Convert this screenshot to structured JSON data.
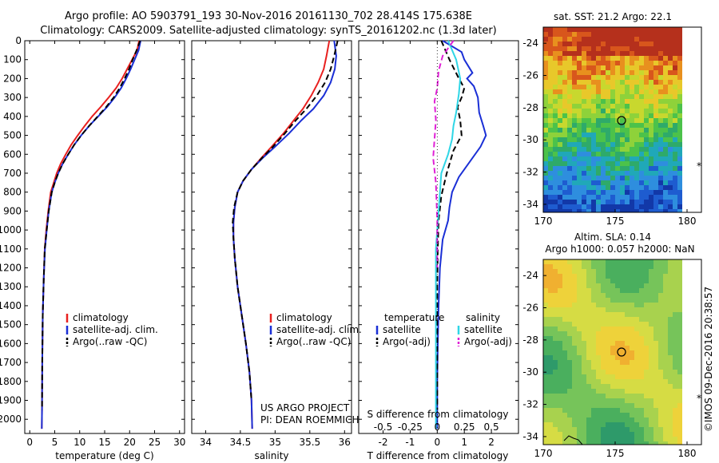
{
  "header": {
    "line1": "Argo profile: AO 5903791_193 30-Nov-2016 20161130_702 28.414S 175.638E",
    "line2": "Climatology: CARS2009. Satellite-adjusted climatology: synTS_20161202.nc (1.3d later)"
  },
  "credit": "©IMOS 09-Dec-2016 20:38:57",
  "project": {
    "line1": "US ARGO PROJECT",
    "line2": "PI: DEAN ROEMMICH"
  },
  "colors": {
    "climatology": "#e8201f",
    "satellite": "#1a2fd6",
    "argo": "#000000",
    "sat_salinity": "#2fd6e6",
    "argo_salinity": "#e020d6"
  },
  "chart_data": [
    {
      "type": "line",
      "panel": "temperature",
      "xlabel": "temperature (deg C)",
      "ylabel": "",
      "xlim": [
        -1,
        31
      ],
      "ylim": [
        2075,
        0
      ],
      "xticks": [
        "0",
        "5",
        "10",
        "15",
        "20",
        "25",
        "30"
      ],
      "yticks": [
        "0",
        "100",
        "200",
        "300",
        "400",
        "500",
        "600",
        "700",
        "800",
        "900",
        "1000",
        "1100",
        "1200",
        "1300",
        "1400",
        "1500",
        "1600",
        "1700",
        "1800",
        "1900",
        "2000"
      ],
      "y_reversed": true,
      "legend": [
        "climatology",
        "satellite-adj. clim.",
        "Argo(..raw -QC)"
      ],
      "legend_position": "lower-left",
      "series": [
        {
          "name": "climatology",
          "color": "#e8201f",
          "dash": "solid",
          "x": [
            21.9,
            21.5,
            20.5,
            19.5,
            18.5,
            17.3,
            15.8,
            14.2,
            12.5,
            11.0,
            9.6,
            8.3,
            7.2,
            6.2,
            5.4,
            4.8,
            4.2,
            3.7,
            3.3,
            3.0,
            2.8,
            2.6,
            2.5,
            2.45,
            2.4
          ],
          "y": [
            0,
            50,
            100,
            150,
            200,
            250,
            300,
            350,
            400,
            450,
            500,
            550,
            600,
            650,
            700,
            750,
            800,
            900,
            1000,
            1100,
            1250,
            1450,
            1700,
            1950,
            2050
          ]
        },
        {
          "name": "satellite-adj. clim.",
          "color": "#1a2fd6",
          "dash": "solid",
          "x": [
            22.2,
            21.8,
            21.0,
            20.2,
            19.3,
            18.3,
            17.0,
            15.5,
            13.7,
            11.9,
            10.3,
            8.9,
            7.7,
            6.6,
            5.7,
            5.0,
            4.4,
            3.8,
            3.4,
            3.05,
            2.8,
            2.6,
            2.5,
            2.45,
            2.4
          ],
          "y": [
            0,
            50,
            100,
            150,
            200,
            250,
            300,
            350,
            400,
            450,
            500,
            550,
            600,
            650,
            700,
            750,
            800,
            900,
            1000,
            1100,
            1250,
            1450,
            1700,
            1950,
            2050
          ]
        },
        {
          "name": "Argo(..raw -QC)",
          "color": "#000000",
          "dash": "dashed",
          "x": [
            22.1,
            21.4,
            20.6,
            19.9,
            19.0,
            18.0,
            16.8,
            15.3,
            13.6,
            11.9,
            10.3,
            8.9,
            7.7,
            6.6,
            5.7,
            5.0,
            4.4,
            3.8,
            3.4,
            3.0,
            2.8,
            2.6,
            2.5,
            2.45
          ],
          "y": [
            0,
            50,
            100,
            150,
            200,
            250,
            300,
            350,
            400,
            450,
            500,
            550,
            600,
            650,
            700,
            750,
            800,
            900,
            1000,
            1100,
            1250,
            1450,
            1700,
            1950
          ]
        }
      ]
    },
    {
      "type": "line",
      "panel": "salinity",
      "xlabel": "salinity",
      "ylabel": "",
      "xlim": [
        33.8,
        36.1
      ],
      "ylim": [
        2075,
        0
      ],
      "xticks": [
        "34",
        "34.5",
        "35",
        "35.5",
        "36"
      ],
      "y_reversed": true,
      "legend": [
        "climatology",
        "satellite-adj. clim.",
        "Argo(..raw -QC)"
      ],
      "legend_position": "lower-right",
      "series": [
        {
          "name": "climatology",
          "color": "#e8201f",
          "dash": "solid",
          "x": [
            35.78,
            35.74,
            35.7,
            35.62,
            35.52,
            35.4,
            35.27,
            35.12,
            34.95,
            34.8,
            34.66,
            34.54,
            34.46,
            34.42,
            34.4,
            34.4,
            34.42,
            34.46,
            34.52,
            34.58,
            34.63,
            34.66,
            34.67
          ],
          "y": [
            0,
            80,
            150,
            220,
            290,
            360,
            420,
            490,
            560,
            620,
            680,
            740,
            800,
            880,
            960,
            1040,
            1150,
            1300,
            1450,
            1600,
            1750,
            1900,
            2050
          ]
        },
        {
          "name": "satellite-adj. clim.",
          "color": "#1a2fd6",
          "dash": "solid",
          "x": [
            35.85,
            35.88,
            35.86,
            35.8,
            35.7,
            35.55,
            35.38,
            35.2,
            35.0,
            34.82,
            34.66,
            34.54,
            34.46,
            34.42,
            34.4,
            34.4,
            34.42,
            34.46,
            34.52,
            34.58,
            34.63,
            34.66,
            34.67
          ],
          "y": [
            0,
            80,
            150,
            220,
            290,
            360,
            420,
            490,
            560,
            620,
            680,
            740,
            800,
            880,
            960,
            1040,
            1150,
            1300,
            1450,
            1600,
            1750,
            1900,
            2050
          ]
        },
        {
          "name": "Argo(..raw -QC)",
          "color": "#000000",
          "dash": "dashed",
          "x": [
            35.9,
            35.85,
            35.8,
            35.72,
            35.6,
            35.45,
            35.3,
            35.14,
            34.97,
            34.81,
            34.66,
            34.54,
            34.46,
            34.41,
            34.39,
            34.4,
            34.42,
            34.46,
            34.52,
            34.58,
            34.63,
            34.66
          ],
          "y": [
            0,
            80,
            150,
            220,
            290,
            360,
            420,
            490,
            560,
            620,
            680,
            740,
            800,
            880,
            960,
            1040,
            1150,
            1300,
            1450,
            1600,
            1750,
            1900
          ]
        }
      ]
    },
    {
      "type": "line",
      "panel": "difference",
      "xlabel": "T difference from climatology",
      "xlabel_top": "S difference from climatology",
      "xlim": [
        -2.9,
        3.0
      ],
      "ylim": [
        2075,
        0
      ],
      "xticks": [
        "-2",
        "-1",
        "0",
        "1",
        "2"
      ],
      "xticks_salinity": [
        "-0.5",
        "-0.25",
        "0",
        "0.25",
        "0.5"
      ],
      "y_reversed": true,
      "legend": [
        "temperature",
        "satellite",
        "Argo(-adj)",
        "salinity",
        "satellite",
        "Argo(-adj)"
      ],
      "legend_position": "lower-center",
      "series": [
        {
          "name": "temperature satellite",
          "color": "#1a2fd6",
          "dash": "solid",
          "x": [
            0.2,
            0.9,
            1.0,
            1.3,
            1.1,
            1.35,
            1.5,
            1.55,
            1.7,
            1.8,
            1.6,
            1.2,
            0.8,
            0.55,
            0.45,
            0.4,
            0.2,
            0.1,
            0.05,
            0.02,
            0.0,
            0.0
          ],
          "y": [
            0,
            60,
            100,
            170,
            200,
            240,
            300,
            380,
            450,
            500,
            560,
            640,
            720,
            800,
            880,
            950,
            1050,
            1200,
            1400,
            1600,
            1800,
            2050
          ]
        },
        {
          "name": "temperature Argo(-adj)",
          "color": "#000000",
          "dash": "dashed",
          "x": [
            0.15,
            0.45,
            0.8,
            1.0,
            0.9,
            0.75,
            0.85,
            0.9,
            0.6,
            0.35,
            0.15,
            0.05,
            0.02,
            0.0,
            0.0,
            0.0
          ],
          "y": [
            0,
            100,
            200,
            250,
            300,
            350,
            420,
            500,
            580,
            700,
            820,
            950,
            1100,
            1300,
            1600,
            1950
          ]
        },
        {
          "name": "salinity satellite",
          "color": "#2fd6e6",
          "dash": "solid",
          "x": [
            0.4,
            0.7,
            0.85,
            0.8,
            0.7,
            0.6,
            0.55,
            0.4,
            0.15,
            0.05,
            -0.05,
            -0.05,
            -0.05,
            -0.05
          ],
          "y": [
            0,
            100,
            200,
            280,
            380,
            450,
            520,
            600,
            700,
            900,
            1100,
            1400,
            1700,
            2050
          ]
        },
        {
          "name": "salinity Argo(-adj)",
          "color": "#e020d6",
          "dash": "dashed",
          "x": [
            0.6,
            0.2,
            0.05,
            0.0,
            -0.1,
            -0.05,
            -0.1,
            -0.15,
            -0.05,
            0.0,
            0.0
          ],
          "y": [
            0,
            80,
            160,
            250,
            320,
            420,
            520,
            620,
            750,
            950,
            1200
          ]
        }
      ]
    },
    {
      "type": "heatmap",
      "panel": "sst-map",
      "title": "sat. SST: 21.2 Argo: 22.1",
      "xticks": [
        "170",
        "175",
        "180"
      ],
      "yticks": [
        "-24",
        "-26",
        "-28",
        "-30",
        "-32",
        "-34"
      ],
      "xlim": [
        170,
        181
      ],
      "ylim": [
        -34.5,
        -23
      ]
    },
    {
      "type": "heatmap",
      "panel": "sla-map",
      "title": "Altim. SLA: 0.14",
      "subtitle": "Argo h1000: 0.057 h2000: NaN",
      "xticks": [
        "170",
        "175",
        "180"
      ],
      "yticks": [
        "-24",
        "-26",
        "-28",
        "-30",
        "-32",
        "-34"
      ],
      "xlim": [
        170,
        181
      ],
      "ylim": [
        -34.5,
        -23
      ]
    }
  ]
}
